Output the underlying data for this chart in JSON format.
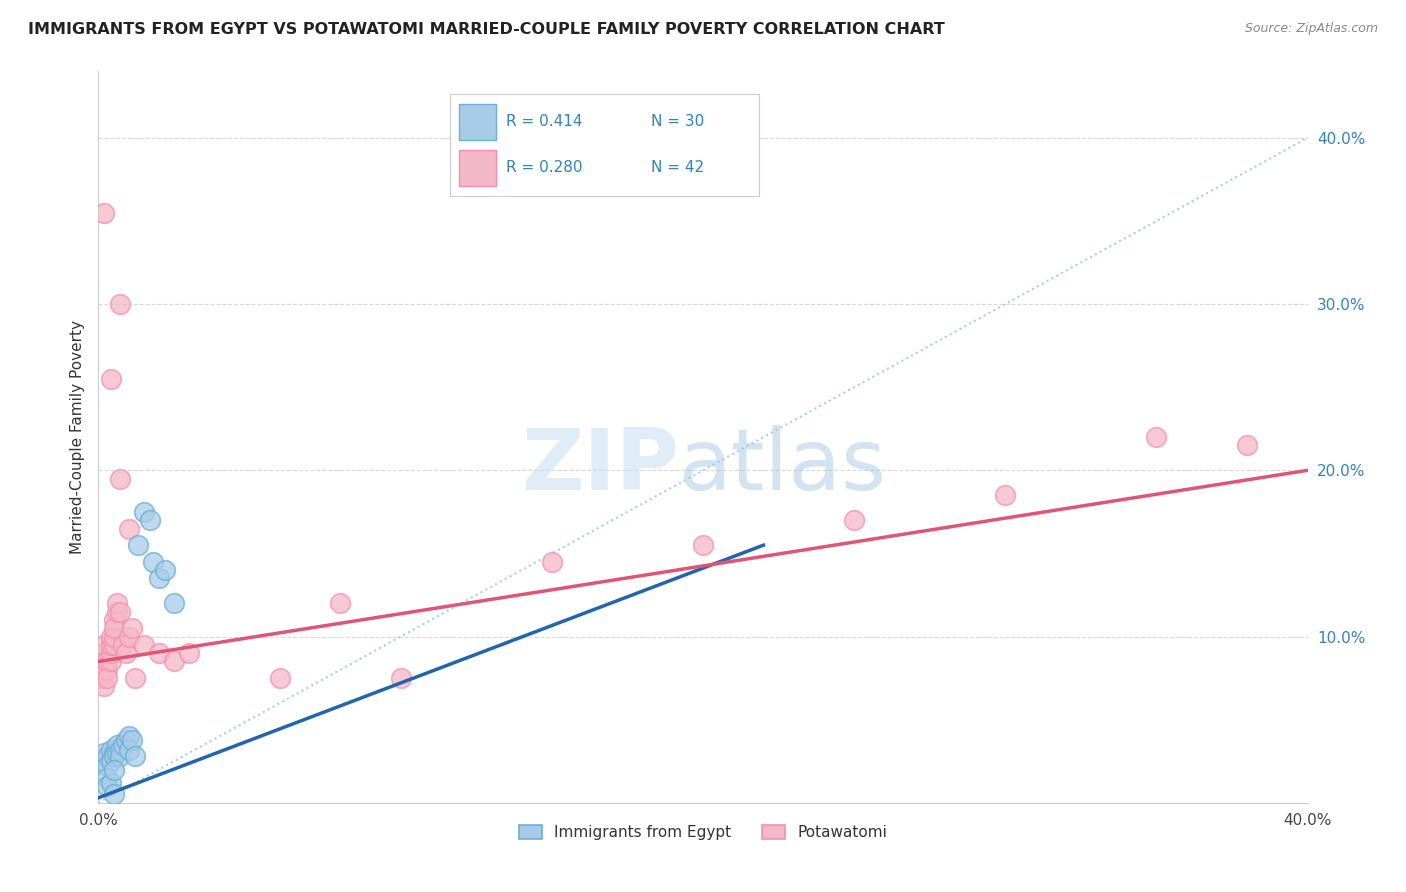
{
  "title": "IMMIGRANTS FROM EGYPT VS POTAWATOMI MARRIED-COUPLE FAMILY POVERTY CORRELATION CHART",
  "source_text": "Source: ZipAtlas.com",
  "ylabel": "Married-Couple Family Poverty",
  "xlim": [
    0.0,
    0.4
  ],
  "ylim": [
    0.0,
    0.44
  ],
  "xtick_vals": [
    0.0,
    0.4
  ],
  "xtick_labels": [
    "0.0%",
    "40.0%"
  ],
  "ytick_vals_right": [
    0.1,
    0.2,
    0.3,
    0.4
  ],
  "ytick_labels_right": [
    "10.0%",
    "20.0%",
    "30.0%",
    "40.0%"
  ],
  "blue_color": "#a8cce8",
  "pink_color": "#f4b8c8",
  "blue_edge_color": "#6baed6",
  "pink_edge_color": "#f48fb1",
  "blue_line_color": "#2166ac",
  "pink_line_color": "#e05576",
  "diag_line_color": "#9ecae1",
  "grid_color": "#d0d0d0",
  "legend_color_R": "#3182bd",
  "legend_label1": "Immigrants from Egypt",
  "legend_label2": "Potawatomi",
  "blue_scatter": [
    [
      0.002,
      0.03
    ],
    [
      0.002,
      0.025
    ],
    [
      0.003,
      0.028
    ],
    [
      0.003,
      0.022
    ],
    [
      0.004,
      0.032
    ],
    [
      0.004,
      0.025
    ],
    [
      0.005,
      0.03
    ],
    [
      0.005,
      0.028
    ],
    [
      0.006,
      0.035
    ],
    [
      0.006,
      0.03
    ],
    [
      0.007,
      0.032
    ],
    [
      0.007,
      0.028
    ],
    [
      0.008,
      0.035
    ],
    [
      0.009,
      0.038
    ],
    [
      0.01,
      0.04
    ],
    [
      0.01,
      0.032
    ],
    [
      0.011,
      0.038
    ],
    [
      0.012,
      0.028
    ],
    [
      0.013,
      0.155
    ],
    [
      0.015,
      0.175
    ],
    [
      0.017,
      0.17
    ],
    [
      0.018,
      0.145
    ],
    [
      0.02,
      0.135
    ],
    [
      0.022,
      0.14
    ],
    [
      0.025,
      0.12
    ],
    [
      0.003,
      0.015
    ],
    [
      0.003,
      0.01
    ],
    [
      0.004,
      0.012
    ],
    [
      0.005,
      0.02
    ],
    [
      0.005,
      0.005
    ]
  ],
  "pink_scatter": [
    [
      0.001,
      0.075
    ],
    [
      0.002,
      0.07
    ],
    [
      0.002,
      0.08
    ],
    [
      0.002,
      0.09
    ],
    [
      0.002,
      0.095
    ],
    [
      0.003,
      0.08
    ],
    [
      0.003,
      0.085
    ],
    [
      0.003,
      0.075
    ],
    [
      0.004,
      0.085
    ],
    [
      0.004,
      0.09
    ],
    [
      0.004,
      0.095
    ],
    [
      0.004,
      0.1
    ],
    [
      0.005,
      0.095
    ],
    [
      0.005,
      0.1
    ],
    [
      0.005,
      0.11
    ],
    [
      0.005,
      0.105
    ],
    [
      0.006,
      0.115
    ],
    [
      0.006,
      0.12
    ],
    [
      0.007,
      0.115
    ],
    [
      0.007,
      0.3
    ],
    [
      0.007,
      0.195
    ],
    [
      0.008,
      0.095
    ],
    [
      0.009,
      0.09
    ],
    [
      0.01,
      0.1
    ],
    [
      0.01,
      0.165
    ],
    [
      0.011,
      0.105
    ],
    [
      0.012,
      0.075
    ],
    [
      0.015,
      0.095
    ],
    [
      0.02,
      0.09
    ],
    [
      0.025,
      0.085
    ],
    [
      0.03,
      0.09
    ],
    [
      0.06,
      0.075
    ],
    [
      0.08,
      0.12
    ],
    [
      0.1,
      0.075
    ],
    [
      0.15,
      0.145
    ],
    [
      0.2,
      0.155
    ],
    [
      0.25,
      0.17
    ],
    [
      0.3,
      0.185
    ],
    [
      0.35,
      0.22
    ],
    [
      0.38,
      0.215
    ],
    [
      0.002,
      0.355
    ],
    [
      0.004,
      0.255
    ]
  ],
  "blue_line_x": [
    0.0,
    0.22
  ],
  "blue_line_y": [
    0.003,
    0.155
  ],
  "pink_line_x": [
    0.0,
    0.4
  ],
  "pink_line_y": [
    0.085,
    0.2
  ]
}
